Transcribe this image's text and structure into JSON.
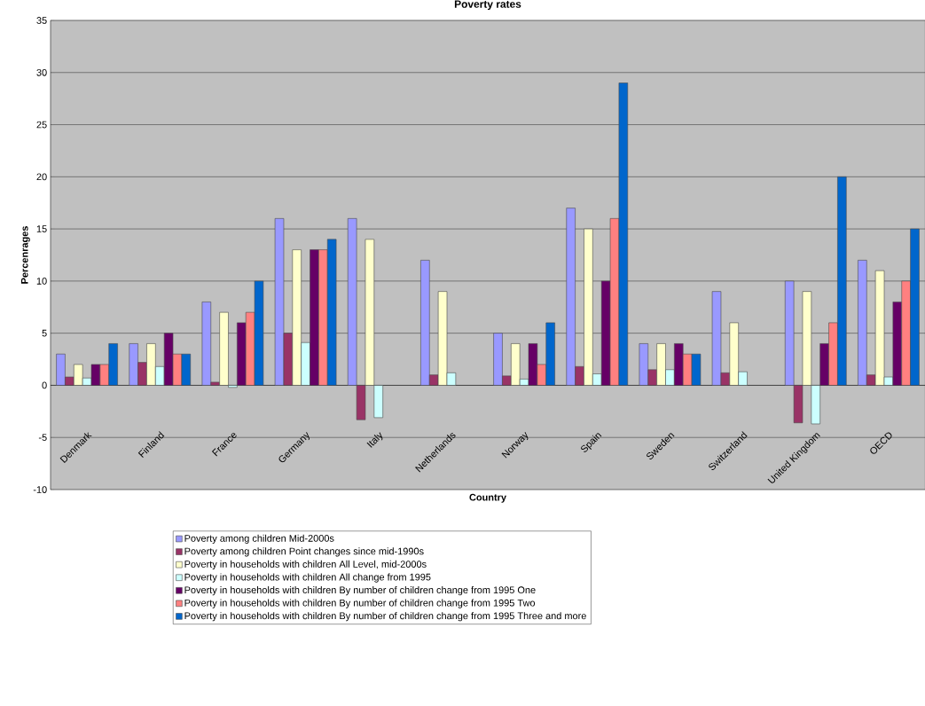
{
  "chart_data": {
    "type": "bar",
    "title": "Poverty rates",
    "xlabel": "Country",
    "ylabel": "Percenrages",
    "categories": [
      "Denmark",
      "Finland",
      "France",
      "Germany",
      "Italy",
      "Netherlands",
      "Norway",
      "Spain",
      "Sweden",
      "Switzerland",
      "United Kingdom",
      "OECD"
    ],
    "series": [
      {
        "name": "Poverty among children Mid-2000s",
        "color": "#9999ff",
        "values": [
          3,
          4,
          8,
          16,
          16,
          12,
          5,
          17,
          4,
          9,
          10,
          12
        ]
      },
      {
        "name": "Poverty among children Point changes since mid-1990s",
        "color": "#993366",
        "values": [
          0.8,
          2.2,
          0.3,
          5,
          -3.3,
          1,
          0.9,
          1.8,
          1.5,
          1.2,
          -3.6,
          1
        ]
      },
      {
        "name": "Poverty in households with children All Level, mid-2000s",
        "color": "#ffffcc",
        "values": [
          2,
          4,
          7,
          13,
          14,
          9,
          4,
          15,
          4,
          6,
          9,
          11
        ]
      },
      {
        "name": "Poverty in households with children All change from 1995",
        "color": "#ccffff",
        "values": [
          0.7,
          1.8,
          -0.2,
          4.1,
          -3.1,
          1.2,
          0.6,
          1.1,
          1.5,
          1.3,
          -3.7,
          0.8
        ]
      },
      {
        "name": "Poverty in households with children By number of children change from 1995 One",
        "color": "#660066",
        "values": [
          2,
          5,
          6,
          13,
          null,
          null,
          4,
          10,
          4,
          null,
          4,
          8
        ]
      },
      {
        "name": "Poverty in households with children By number of children change from 1995 Two",
        "color": "#ff8080",
        "values": [
          2,
          3,
          7,
          13,
          null,
          null,
          2,
          16,
          3,
          null,
          6,
          10
        ]
      },
      {
        "name": "Poverty in households with children By number of children change from 1995 Three and more",
        "color": "#0066cc",
        "values": [
          4,
          3,
          10,
          14,
          null,
          null,
          6,
          29,
          3,
          null,
          20,
          15
        ]
      }
    ],
    "ylim": [
      -10,
      35
    ],
    "yticks": [
      -10,
      -5,
      0,
      5,
      10,
      15,
      20,
      25,
      30,
      35
    ],
    "grid": "y",
    "legend": "bottom"
  }
}
